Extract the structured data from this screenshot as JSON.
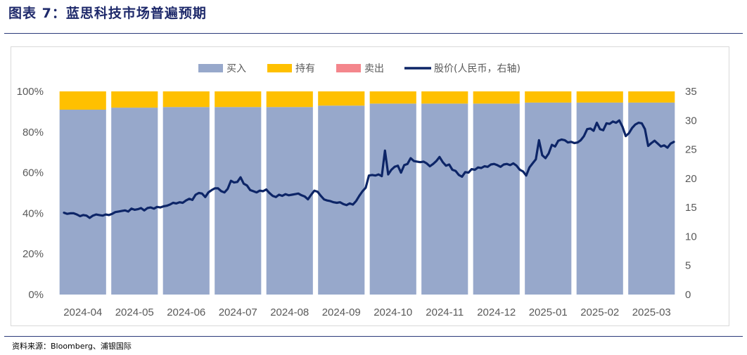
{
  "header": {
    "title": "图表 7：蓝思科技市场普遍预期"
  },
  "footer": {
    "source": "资料来源：Bloomberg、浦银国际"
  },
  "chart_data": {
    "type": "bar",
    "stacked": true,
    "categories": [
      "2024-04",
      "2024-05",
      "2024-06",
      "2024-07",
      "2024-08",
      "2024-09",
      "2024-10",
      "2024-11",
      "2024-12",
      "2025-01",
      "2025-02",
      "2025-03"
    ],
    "series": [
      {
        "name": "买入",
        "color": "#97a8cb",
        "values": [
          0.91,
          0.92,
          0.923,
          0.923,
          0.923,
          0.93,
          0.94,
          0.94,
          0.94,
          0.945,
          0.945,
          0.945
        ]
      },
      {
        "name": "持有",
        "color": "#ffc000",
        "values": [
          0.09,
          0.08,
          0.077,
          0.077,
          0.077,
          0.07,
          0.06,
          0.06,
          0.06,
          0.055,
          0.055,
          0.055
        ]
      },
      {
        "name": "卖出",
        "color": "#f4868c",
        "values": [
          0,
          0,
          0,
          0,
          0,
          0,
          0,
          0,
          0,
          0,
          0,
          0
        ]
      }
    ],
    "line": {
      "name": "股价(人民币，右轴)",
      "color": "#0d2567",
      "values": [
        14.1,
        13.9,
        14.0,
        14.0,
        13.8,
        13.5,
        13.7,
        13.6,
        13.2,
        13.6,
        13.8,
        13.7,
        13.6,
        13.8,
        13.7,
        13.9,
        14.2,
        14.3,
        14.4,
        14.5,
        14.3,
        14.8,
        14.6,
        14.7,
        14.9,
        14.5,
        14.9,
        15.0,
        14.8,
        15.1,
        15.0,
        15.2,
        15.3,
        15.5,
        15.8,
        15.7,
        15.9,
        15.8,
        16.2,
        16.5,
        16.3,
        17.2,
        17.5,
        17.4,
        16.8,
        17.6,
        18.0,
        18.3,
        18.3,
        17.8,
        17.6,
        18.2,
        19.6,
        19.3,
        19.4,
        20.2,
        19.1,
        18.8,
        18.0,
        17.8,
        17.6,
        17.9,
        17.8,
        18.1,
        17.5,
        17.0,
        16.8,
        17.2,
        17.0,
        17.3,
        17.1,
        17.2,
        17.3,
        17.4,
        17.1,
        16.9,
        16.4,
        17.2,
        17.9,
        17.7,
        17.0,
        16.4,
        16.2,
        16.1,
        15.9,
        15.8,
        15.9,
        15.6,
        15.4,
        15.7,
        15.5,
        16.1,
        17.0,
        17.8,
        18.4,
        20.5,
        20.6,
        20.5,
        20.7,
        20.4,
        24.8,
        20.7,
        21.5,
        22.0,
        22.2,
        21.0,
        22.3,
        22.5,
        23.5,
        23.0,
        22.9,
        22.8,
        22.9,
        22.6,
        22.1,
        22.5,
        23.0,
        23.7,
        22.8,
        22.2,
        22.4,
        21.5,
        21.3,
        20.6,
        20.3,
        21.1,
        21.0,
        21.6,
        21.5,
        21.9,
        21.8,
        22.1,
        22.0,
        22.4,
        22.5,
        22.3,
        22.0,
        22.4,
        22.5,
        22.3,
        22.6,
        22.2,
        21.5,
        21.2,
        20.5,
        21.9,
        22.6,
        23.3,
        26.6,
        24.0,
        23.5,
        24.3,
        25.8,
        25.5,
        26.5,
        26.7,
        26.6,
        26.2,
        26.3,
        26.1,
        26.2,
        26.6,
        27.3,
        28.5,
        28.6,
        28.2,
        29.6,
        28.5,
        28.3,
        29.5,
        29.4,
        29.8,
        29.6,
        30.0,
        28.9,
        27.3,
        27.8,
        28.7,
        29.3,
        29.6,
        29.5,
        28.5,
        25.6,
        26.1,
        26.5,
        26.0,
        25.5,
        25.7,
        25.3,
        26.0,
        26.3
      ]
    },
    "y_left": {
      "min": 0,
      "max": 1,
      "ticks": [
        "0%",
        "20%",
        "40%",
        "60%",
        "80%",
        "100%"
      ]
    },
    "y_right": {
      "min": 0,
      "max": 35,
      "ticks": [
        "0",
        "5",
        "10",
        "15",
        "20",
        "25",
        "30",
        "35"
      ]
    },
    "grid": false,
    "legend_position": "top"
  }
}
